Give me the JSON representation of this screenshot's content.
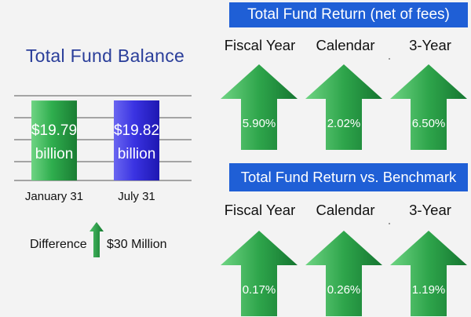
{
  "balance": {
    "title": "Total Fund Balance",
    "difference_label": "Difference",
    "difference_value": "$30 Million"
  },
  "returns": {
    "fund_return_title": "Total Fund Return (net of fees)",
    "vs_benchmark_title": "Total Fund Return vs. Benchmark",
    "headers": [
      "Fiscal Year",
      "Calendar",
      "3-Year"
    ],
    "fund_return_values": [
      "5.90%",
      "2.02%",
      "6.50%"
    ],
    "vs_benchmark_values": [
      "0.17%",
      "0.26%",
      "1.19%"
    ]
  },
  "colors": {
    "green": "#1f8a3a",
    "green_light": "#6fd483",
    "blue": "#2a23d6",
    "blue_light": "#6a66f0",
    "banner": "#1f5fd6"
  },
  "chart_data": [
    {
      "type": "bar",
      "title": "Total Fund Balance",
      "categories": [
        "January 31",
        "July 31"
      ],
      "values": [
        19.79,
        19.82
      ],
      "data_labels": [
        "$19.79 billion",
        "$19.82 billion"
      ],
      "grid": true
    }
  ]
}
